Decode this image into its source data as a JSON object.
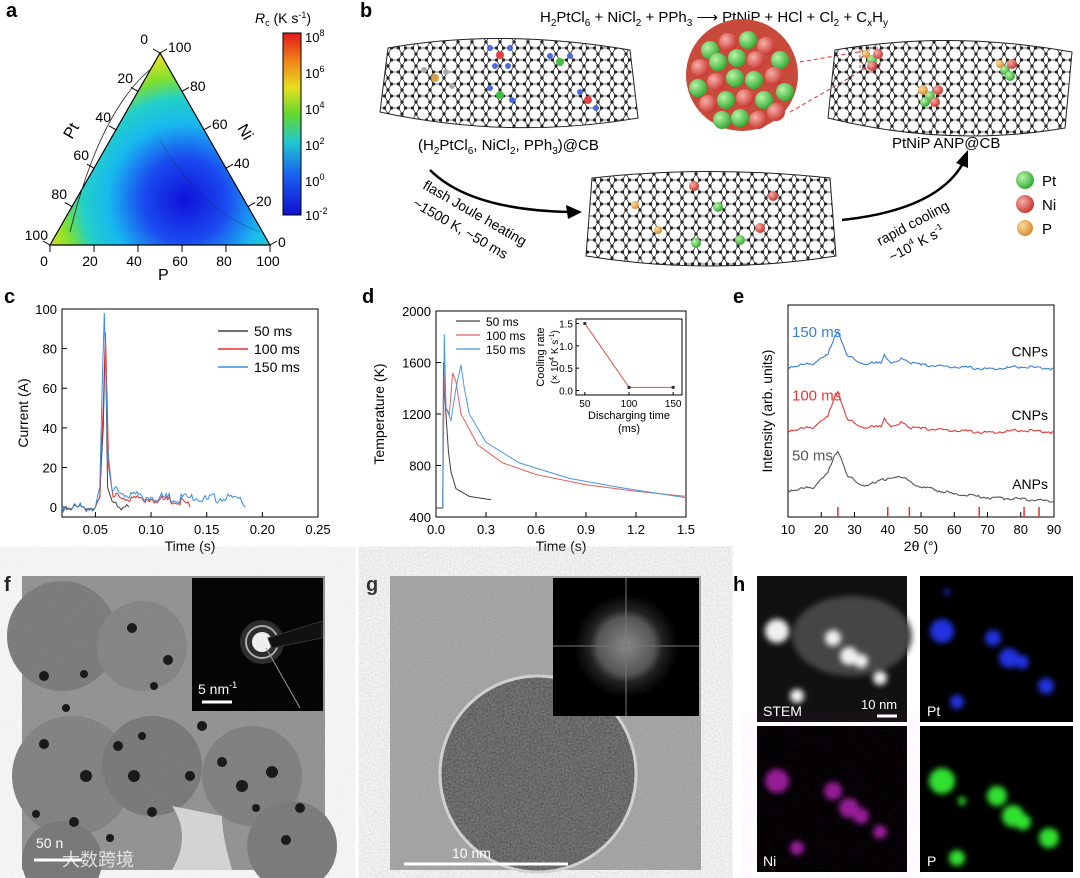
{
  "panel_labels": {
    "a": "a",
    "b": "b",
    "c": "c",
    "d": "d",
    "e": "e",
    "f": "f",
    "g": "g",
    "h": "h"
  },
  "panel_a": {
    "axis_pt": "Pt",
    "axis_ni": "Ni",
    "axis_p": "P",
    "ticks": [
      "0",
      "20",
      "40",
      "60",
      "80",
      "100"
    ],
    "colorbar_title": "R",
    "colorbar_title_sub": "c",
    "colorbar_unit": " (K s",
    "colorbar_unit_sup": "-1",
    "colorbar_unit_end": ")",
    "colorbar_ticks": [
      {
        "base": "10",
        "exp": "8"
      },
      {
        "base": "10",
        "exp": "6"
      },
      {
        "base": "10",
        "exp": "4"
      },
      {
        "base": "10",
        "exp": "2"
      },
      {
        "base": "10",
        "exp": "0"
      },
      {
        "base": "10",
        "exp": "-2"
      }
    ]
  },
  "panel_b": {
    "equation": {
      "a": "H",
      "a2": "2",
      "b": "PtCl",
      "b2": "6",
      "c": " + NiCl",
      "c2": "2",
      "d": " + PPh",
      "d2": "3",
      "arrow": " ⟶ PtNiP + HCl + Cl",
      "e2": "2",
      "f": " + C",
      "f2": "x",
      "g": "H",
      "g2": "y"
    },
    "precursor_label": {
      "a": "(H",
      "a2": "2",
      "b": "PtCl",
      "b2": "6",
      "c": ", NiCl",
      "c2": "2",
      "d": ", PPh",
      "d2": "3",
      "e": ")@CB"
    },
    "product_label": "PtNiP ANP@CB",
    "heating_line1": "flash Joule heating",
    "heating_line2": "~1500 K, ~50 ms",
    "cooling_line1": "rapid cooling",
    "cooling_line2a": "~10",
    "cooling_line2b": "4",
    "cooling_line2c": " K s",
    "cooling_line2d": "-1",
    "legend": [
      {
        "label": "Pt",
        "color": "#3fbf3f"
      },
      {
        "label": "Ni",
        "color": "#d9453f"
      },
      {
        "label": "P",
        "color": "#e8a540"
      }
    ]
  },
  "chart_data": [
    {
      "id": "c",
      "type": "line",
      "title": "",
      "xlabel": "Time (s)",
      "ylabel": "Current (A)",
      "xlim": [
        0.02,
        0.25
      ],
      "ylim": [
        -5,
        100
      ],
      "x_ticks": [
        "0.05",
        "0.10",
        "0.15",
        "0.20",
        "0.25"
      ],
      "y_ticks": [
        "0",
        "20",
        "40",
        "60",
        "80",
        "100"
      ],
      "series": [
        {
          "name": "50 ms",
          "color": "#404040",
          "x": [
            0.02,
            0.05,
            0.054,
            0.057,
            0.059,
            0.061,
            0.065,
            0.07,
            0.075,
            0.08
          ],
          "y": [
            0,
            0,
            5,
            40,
            85,
            10,
            3,
            0,
            0,
            0
          ]
        },
        {
          "name": "100 ms",
          "color": "#e03030",
          "x": [
            0.02,
            0.05,
            0.054,
            0.057,
            0.059,
            0.062,
            0.066,
            0.1,
            0.13,
            0.135
          ],
          "y": [
            0,
            0,
            5,
            50,
            88,
            20,
            5,
            4,
            3,
            0
          ]
        },
        {
          "name": "150 ms",
          "color": "#3a8fe0",
          "x": [
            0.02,
            0.05,
            0.054,
            0.056,
            0.058,
            0.061,
            0.065,
            0.1,
            0.15,
            0.18,
            0.185
          ],
          "y": [
            0,
            0,
            10,
            60,
            98,
            30,
            8,
            5,
            4,
            5,
            0
          ]
        }
      ]
    },
    {
      "id": "d",
      "type": "line",
      "title": "",
      "xlabel": "Time (s)",
      "ylabel": "Temperature (K)",
      "xlim": [
        0,
        1.5
      ],
      "ylim": [
        400,
        2000
      ],
      "x_ticks": [
        "0.0",
        "0.3",
        "0.6",
        "0.9",
        "1.2",
        "1.5"
      ],
      "y_ticks": [
        "400",
        "800",
        "1200",
        "1600",
        "2000"
      ],
      "series": [
        {
          "name": "50 ms",
          "color": "#404040",
          "x": [
            0.0,
            0.04,
            0.045,
            0.055,
            0.065,
            0.075,
            0.09,
            0.12,
            0.2,
            0.3,
            0.33
          ],
          "y": [
            470,
            470,
            1600,
            1300,
            1100,
            900,
            750,
            620,
            560,
            540,
            535
          ]
        },
        {
          "name": "100 ms",
          "color": "#e06060",
          "x": [
            0.04,
            0.05,
            0.06,
            0.08,
            0.1,
            0.12,
            0.15,
            0.25,
            0.4,
            0.6,
            0.9,
            1.2,
            1.5
          ],
          "y": [
            470,
            1550,
            1250,
            1200,
            1520,
            1450,
            1200,
            960,
            820,
            730,
            650,
            600,
            560
          ]
        },
        {
          "name": "150 ms",
          "color": "#4a9ae0",
          "x": [
            0.04,
            0.05,
            0.06,
            0.09,
            0.12,
            0.15,
            0.17,
            0.2,
            0.3,
            0.5,
            0.8,
            1.1,
            1.5
          ],
          "y": [
            470,
            1820,
            1250,
            1150,
            1400,
            1580,
            1400,
            1200,
            980,
            820,
            700,
            630,
            550
          ]
        }
      ],
      "inset": {
        "type": "line",
        "xlabel": "Discharging time",
        "xlabel2": "(ms)",
        "ylabel": "Cooling rate",
        "ylabel2a": "(× 10",
        "ylabel2b": "4",
        "ylabel2c": " K s",
        "ylabel2d": "-1",
        "ylabel2e": ")",
        "xlim": [
          40,
          160
        ],
        "ylim": [
          -0.1,
          1.6
        ],
        "x_ticks": [
          "50",
          "100",
          "150"
        ],
        "y_ticks": [
          "0.0",
          "0.5",
          "1.0",
          "1.5"
        ],
        "x": [
          50,
          100,
          150
        ],
        "y": [
          1.5,
          0.07,
          0.07
        ],
        "color": "#e05050"
      }
    },
    {
      "id": "e",
      "type": "line",
      "title": "",
      "xlabel": "2θ (°)",
      "ylabel": "Intensity (arb. units)",
      "xlim": [
        10,
        90
      ],
      "x_ticks": [
        "10",
        "20",
        "30",
        "40",
        "50",
        "60",
        "70",
        "80",
        "90"
      ],
      "series": [
        {
          "name": "150 ms",
          "label": "CNPs",
          "color": "#3a7fd8",
          "x": [
            10,
            18,
            22,
            24,
            25,
            26,
            28,
            32,
            38,
            39,
            40,
            41,
            44,
            45,
            46,
            50,
            60,
            70,
            80,
            90
          ],
          "y": [
            0.8,
            0.82,
            0.87,
            0.97,
            1.0,
            0.95,
            0.86,
            0.82,
            0.82,
            0.87,
            0.84,
            0.82,
            0.85,
            0.84,
            0.83,
            0.81,
            0.8,
            0.79,
            0.8,
            0.79
          ]
        },
        {
          "name": "100 ms",
          "label": "CNPs",
          "color": "#e03a3a",
          "x": [
            10,
            18,
            22,
            24,
            25,
            26,
            28,
            32,
            38,
            39,
            40,
            41,
            44,
            45,
            46,
            50,
            60,
            70,
            80,
            90
          ],
          "y": [
            0.44,
            0.46,
            0.52,
            0.63,
            0.66,
            0.6,
            0.5,
            0.46,
            0.46,
            0.51,
            0.48,
            0.46,
            0.49,
            0.48,
            0.46,
            0.45,
            0.44,
            0.43,
            0.44,
            0.43
          ]
        },
        {
          "name": "50 ms",
          "label": "ANPs",
          "color": "#555555",
          "x": [
            10,
            18,
            22,
            24,
            25,
            26,
            28,
            32,
            36,
            40,
            43,
            46,
            50,
            60,
            70,
            80,
            90
          ],
          "y": [
            0.1,
            0.12,
            0.2,
            0.3,
            0.32,
            0.28,
            0.18,
            0.13,
            0.14,
            0.17,
            0.18,
            0.16,
            0.12,
            0.08,
            0.06,
            0.05,
            0.04
          ]
        }
      ],
      "reference_ticks_x": [
        25,
        40,
        46.5,
        67.5,
        81,
        85.5
      ],
      "reference_color": "#e03030"
    }
  ],
  "panel_f": {
    "inset_scale": "5 nm",
    "inset_scale_sup": "-1",
    "watermark": "大数跨境",
    "scale_partial": "50 n"
  },
  "panel_g": {
    "scale": "10 nm"
  },
  "panel_h": {
    "stem": "STEM",
    "scale": "10 nm",
    "pt": "Pt",
    "ni": "Ni",
    "p": "P"
  }
}
